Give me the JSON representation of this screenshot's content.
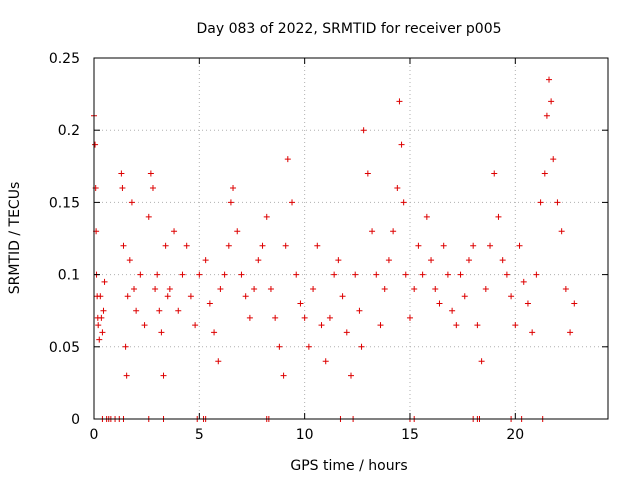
{
  "chart_data": {
    "type": "scatter",
    "title": "Day 083 of 2022, SRMTID for receiver p005",
    "xlabel": "GPS time / hours",
    "ylabel": "SRMTID / TECUs",
    "xlim": [
      0,
      24.4
    ],
    "ylim": [
      0,
      0.25
    ],
    "x_ticks": [
      0,
      5,
      10,
      15,
      20
    ],
    "x_tick_labels": [
      "0",
      "5",
      "10",
      "15",
      "20"
    ],
    "y_ticks": [
      0,
      0.05,
      0.1,
      0.15,
      0.2,
      0.25
    ],
    "y_tick_labels": [
      "0",
      "0.05",
      "0.1",
      "0.15",
      "0.2",
      "0.25"
    ],
    "grid": true,
    "marker": "plus",
    "color": "#dd0000",
    "series": [
      {
        "name": "SRMTID",
        "x": [
          0.0,
          0.05,
          0.08,
          0.1,
          0.12,
          0.15,
          0.18,
          0.2,
          0.25,
          0.3,
          0.35,
          0.4,
          0.45,
          0.5,
          1.3,
          1.35,
          1.4,
          1.5,
          1.55,
          1.6,
          1.7,
          1.8,
          1.9,
          2.0,
          2.2,
          2.4,
          2.6,
          2.7,
          2.8,
          2.9,
          3.0,
          3.1,
          3.2,
          3.3,
          3.4,
          3.5,
          3.6,
          3.8,
          4.0,
          4.2,
          4.4,
          4.6,
          4.8,
          5.0,
          5.3,
          5.5,
          5.7,
          5.9,
          6.0,
          6.2,
          6.4,
          6.5,
          6.6,
          6.8,
          7.0,
          7.2,
          7.4,
          7.6,
          7.8,
          8.0,
          8.2,
          8.4,
          8.6,
          8.8,
          9.0,
          9.1,
          9.2,
          9.4,
          9.6,
          9.8,
          10.0,
          10.2,
          10.4,
          10.6,
          10.8,
          11.0,
          11.2,
          11.4,
          11.6,
          11.8,
          12.0,
          12.2,
          12.4,
          12.6,
          12.7,
          12.8,
          13.0,
          13.2,
          13.4,
          13.6,
          13.8,
          14.0,
          14.2,
          14.4,
          14.5,
          14.6,
          14.7,
          14.8,
          15.0,
          15.2,
          15.4,
          15.6,
          15.8,
          16.0,
          16.2,
          16.4,
          16.6,
          16.8,
          17.0,
          17.2,
          17.4,
          17.6,
          17.8,
          18.0,
          18.2,
          18.4,
          18.6,
          18.8,
          19.0,
          19.2,
          19.4,
          19.6,
          19.8,
          20.0,
          20.2,
          20.4,
          20.6,
          20.8,
          21.0,
          21.2,
          21.4,
          21.5,
          21.6,
          21.7,
          21.8,
          22.0,
          22.2,
          22.4,
          22.6,
          22.8
        ],
        "y": [
          0.21,
          0.19,
          0.16,
          0.13,
          0.1,
          0.085,
          0.07,
          0.065,
          0.055,
          0.085,
          0.07,
          0.06,
          0.075,
          0.095,
          0.17,
          0.16,
          0.12,
          0.05,
          0.03,
          0.085,
          0.11,
          0.15,
          0.09,
          0.075,
          0.1,
          0.065,
          0.14,
          0.17,
          0.16,
          0.09,
          0.1,
          0.075,
          0.06,
          0.03,
          0.12,
          0.085,
          0.09,
          0.13,
          0.075,
          0.1,
          0.12,
          0.085,
          0.065,
          0.1,
          0.11,
          0.08,
          0.06,
          0.04,
          0.09,
          0.1,
          0.12,
          0.15,
          0.16,
          0.13,
          0.1,
          0.085,
          0.07,
          0.09,
          0.11,
          0.12,
          0.14,
          0.09,
          0.07,
          0.05,
          0.03,
          0.12,
          0.18,
          0.15,
          0.1,
          0.08,
          0.07,
          0.05,
          0.09,
          0.12,
          0.065,
          0.04,
          0.07,
          0.1,
          0.11,
          0.085,
          0.06,
          0.03,
          0.1,
          0.075,
          0.05,
          0.2,
          0.17,
          0.13,
          0.1,
          0.065,
          0.09,
          0.11,
          0.13,
          0.16,
          0.22,
          0.19,
          0.15,
          0.1,
          0.07,
          0.09,
          0.12,
          0.1,
          0.14,
          0.11,
          0.09,
          0.08,
          0.12,
          0.1,
          0.075,
          0.065,
          0.1,
          0.085,
          0.11,
          0.12,
          0.065,
          0.04,
          0.09,
          0.12,
          0.17,
          0.14,
          0.11,
          0.1,
          0.085,
          0.065,
          0.12,
          0.095,
          0.08,
          0.06,
          0.1,
          0.15,
          0.17,
          0.21,
          0.235,
          0.22,
          0.18,
          0.15,
          0.13,
          0.09,
          0.06,
          0.08
        ]
      }
    ],
    "zero_markers_x": [
      0.4,
      0.6,
      0.7,
      0.8,
      1.0,
      1.2,
      1.4,
      2.6,
      3.3,
      4.9,
      5.2,
      5.3,
      8.2,
      8.3,
      11.7,
      12.3,
      15.0,
      15.2,
      18.0,
      18.2,
      18.3,
      19.8,
      20.3,
      21.3
    ]
  }
}
